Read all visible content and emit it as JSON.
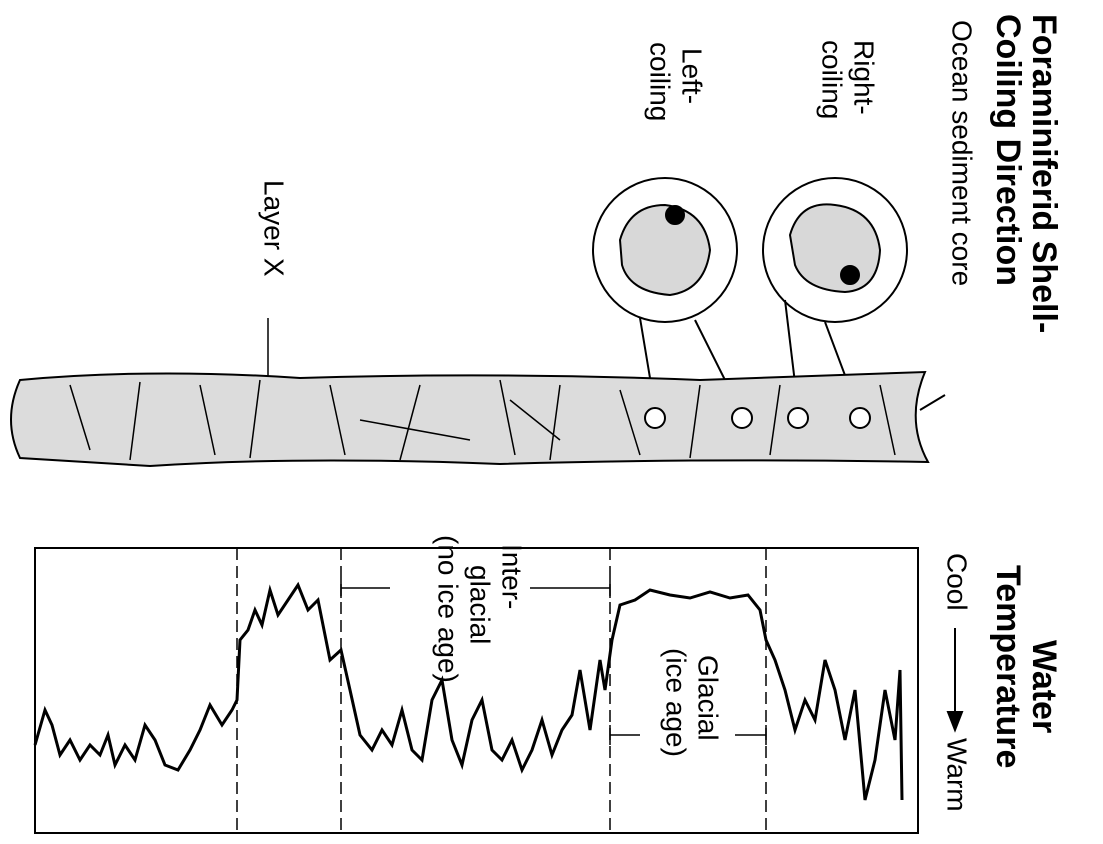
{
  "title": {
    "lines": [
      "Foraminiferid Shell-",
      "Coiling Direction"
    ]
  },
  "core_label": "Ocean sediment core",
  "coiling": {
    "right": [
      "Right-",
      "coiling"
    ],
    "left": [
      "Left-",
      "coiling"
    ]
  },
  "layer_label": "Layer X",
  "temperature": {
    "title": [
      "Water",
      "Temperature"
    ],
    "cool": "Cool",
    "warm": "Warm"
  },
  "periods": {
    "interglacial": [
      "Inter-",
      "glacial",
      "(no ice age)"
    ],
    "glacial": [
      "Glacial",
      "(ice age)"
    ]
  }
}
